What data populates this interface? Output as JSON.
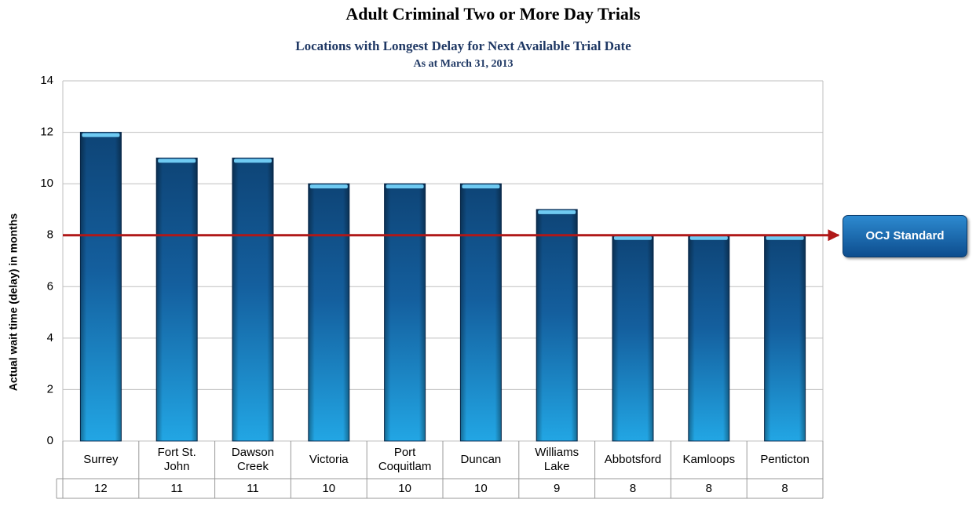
{
  "chart_data": {
    "type": "bar",
    "title": "Adult Criminal Two or More Day Trials",
    "subtitle": "Locations with Longest Delay for Next Available Trial Date",
    "date_note": "As at March 31, 2013",
    "y_label": "Actual wait time (delay) in months",
    "categories": [
      "Surrey",
      "Fort St. John",
      "Dawson Creek",
      "Victoria",
      "Port Coquitlam",
      "Duncan",
      "Williams Lake",
      "Abbotsford",
      "Kamloops",
      "Penticton"
    ],
    "values": [
      12,
      11,
      11,
      10,
      10,
      10,
      9,
      8,
      8,
      8
    ],
    "color": "#1a8fd0",
    "ylim": [
      0,
      14
    ],
    "yticks": [
      0,
      2,
      4,
      6,
      8,
      10,
      12,
      14
    ],
    "grid": true,
    "reference_line": {
      "value": 8,
      "label": "OCJ Standard",
      "color": "#b01818"
    }
  }
}
